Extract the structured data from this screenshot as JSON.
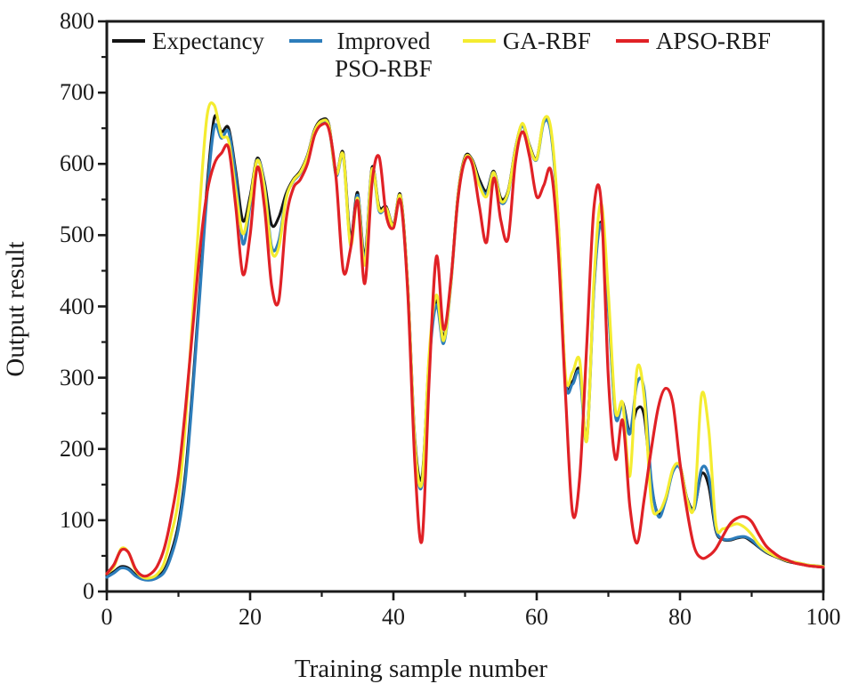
{
  "chart_data": {
    "type": "line",
    "title": "",
    "xlabel": "Training sample number",
    "ylabel": "Output result",
    "xlim": [
      0,
      100
    ],
    "ylim": [
      0,
      800
    ],
    "grid": false,
    "legend_position": "top-inside",
    "frame": "full-box",
    "axis_color": "#1a1a1a",
    "x_ticks": {
      "major": [
        0,
        20,
        40,
        60,
        80,
        100
      ],
      "minor": [
        10,
        30,
        50,
        70,
        90
      ],
      "labels": [
        "0",
        "20",
        "40",
        "60",
        "80",
        "100"
      ]
    },
    "y_ticks": {
      "major": [
        0,
        100,
        200,
        300,
        400,
        500,
        600,
        700,
        800
      ],
      "minor": [
        50,
        150,
        250,
        350,
        450,
        550,
        650,
        750
      ],
      "labels": [
        "0",
        "100",
        "200",
        "300",
        "400",
        "500",
        "600",
        "700",
        "800"
      ]
    },
    "x": [
      0,
      1,
      2,
      3,
      4,
      5,
      6,
      7,
      8,
      9,
      10,
      11,
      12,
      13,
      14,
      15,
      16,
      17,
      18,
      19,
      20,
      21,
      22,
      23,
      24,
      25,
      26,
      27,
      28,
      29,
      30,
      31,
      32,
      33,
      34,
      35,
      36,
      37,
      38,
      39,
      40,
      41,
      42,
      43,
      44,
      45,
      46,
      47,
      48,
      49,
      50,
      51,
      52,
      53,
      54,
      55,
      56,
      57,
      58,
      59,
      60,
      61,
      62,
      63,
      64,
      65,
      66,
      67,
      68,
      69,
      70,
      71,
      72,
      73,
      74,
      75,
      76,
      77,
      78,
      79,
      80,
      81,
      82,
      83,
      84,
      85,
      86,
      87,
      88,
      89,
      90,
      91,
      92,
      93,
      94,
      95,
      96,
      97,
      98,
      99,
      100
    ],
    "series": [
      {
        "name": "Expectancy",
        "color": "#141414",
        "width": 3,
        "values": [
          22,
          28,
          35,
          33,
          24,
          19,
          18,
          21,
          30,
          55,
          95,
          170,
          290,
          430,
          570,
          665,
          645,
          650,
          590,
          520,
          555,
          608,
          575,
          515,
          525,
          558,
          578,
          590,
          612,
          648,
          662,
          655,
          588,
          615,
          498,
          560,
          470,
          595,
          540,
          540,
          515,
          556,
          430,
          215,
          162,
          330,
          408,
          357,
          432,
          556,
          610,
          606,
          578,
          562,
          590,
          552,
          562,
          620,
          656,
          626,
          608,
          660,
          644,
          520,
          300,
          295,
          310,
          216,
          430,
          518,
          400,
          248,
          265,
          224,
          256,
          246,
          150,
          108,
          130,
          170,
          176,
          130,
          118,
          165,
          148,
          85,
          73,
          72,
          75,
          76,
          70,
          62,
          55,
          50,
          46,
          42,
          40,
          38,
          36,
          35,
          34
        ]
      },
      {
        "name": "Improved PSO-RBF",
        "color": "#2d7dbb",
        "width": 3.2,
        "values": [
          20,
          26,
          33,
          31,
          22,
          17,
          16,
          19,
          27,
          50,
          88,
          160,
          280,
          420,
          558,
          652,
          636,
          645,
          582,
          488,
          542,
          605,
          570,
          484,
          492,
          552,
          575,
          587,
          610,
          645,
          658,
          652,
          584,
          610,
          490,
          556,
          464,
          590,
          534,
          537,
          512,
          552,
          426,
          205,
          150,
          322,
          402,
          348,
          428,
          552,
          607,
          603,
          572,
          558,
          588,
          546,
          558,
          617,
          654,
          623,
          606,
          658,
          642,
          517,
          297,
          291,
          306,
          213,
          427,
          515,
          397,
          246,
          262,
          221,
          292,
          282,
          155,
          105,
          128,
          168,
          173,
          128,
          116,
          172,
          162,
          88,
          74,
          73,
          76,
          77,
          72,
          63,
          56,
          51,
          47,
          43,
          41,
          39,
          37,
          36,
          35
        ]
      },
      {
        "name": "GA-RBF",
        "color": "#f4ec30",
        "width": 3.2,
        "values": [
          25,
          35,
          60,
          55,
          30,
          20,
          19,
          24,
          40,
          80,
          130,
          240,
          390,
          545,
          668,
          682,
          640,
          632,
          562,
          502,
          548,
          605,
          566,
          478,
          483,
          550,
          576,
          588,
          610,
          646,
          660,
          653,
          586,
          612,
          486,
          552,
          458,
          592,
          536,
          538,
          513,
          554,
          428,
          208,
          154,
          335,
          416,
          352,
          430,
          554,
          608,
          604,
          570,
          554,
          588,
          548,
          560,
          618,
          657,
          624,
          607,
          662,
          648,
          524,
          305,
          308,
          324,
          212,
          438,
          545,
          418,
          254,
          264,
          162,
          312,
          272,
          126,
          112,
          132,
          172,
          176,
          128,
          122,
          275,
          228,
          95,
          88,
          92,
          95,
          90,
          80,
          66,
          57,
          51,
          47,
          43,
          41,
          39,
          37,
          36,
          35
        ]
      },
      {
        "name": "APSO-RBF",
        "color": "#e02126",
        "width": 3.2,
        "values": [
          25,
          38,
          58,
          55,
          32,
          22,
          24,
          35,
          60,
          105,
          165,
          260,
          370,
          480,
          560,
          600,
          615,
          622,
          540,
          445,
          500,
          595,
          540,
          430,
          408,
          520,
          565,
          578,
          600,
          640,
          655,
          648,
          580,
          450,
          480,
          548,
          432,
          572,
          610,
          528,
          510,
          548,
          420,
          180,
          72,
          300,
          470,
          368,
          435,
          550,
          605,
          600,
          540,
          490,
          580,
          520,
          495,
          600,
          645,
          610,
          554,
          570,
          590,
          480,
          280,
          110,
          160,
          350,
          540,
          546,
          300,
          186,
          240,
          120,
          68,
          130,
          200,
          260,
          285,
          264,
          180,
          112,
          62,
          47,
          50,
          60,
          78,
          95,
          103,
          105,
          98,
          80,
          64,
          55,
          48,
          44,
          40,
          38,
          36,
          35,
          34
        ]
      }
    ]
  },
  "layout_text": {
    "x_axis_title": "Training sample number",
    "y_axis_title": "Output result"
  }
}
